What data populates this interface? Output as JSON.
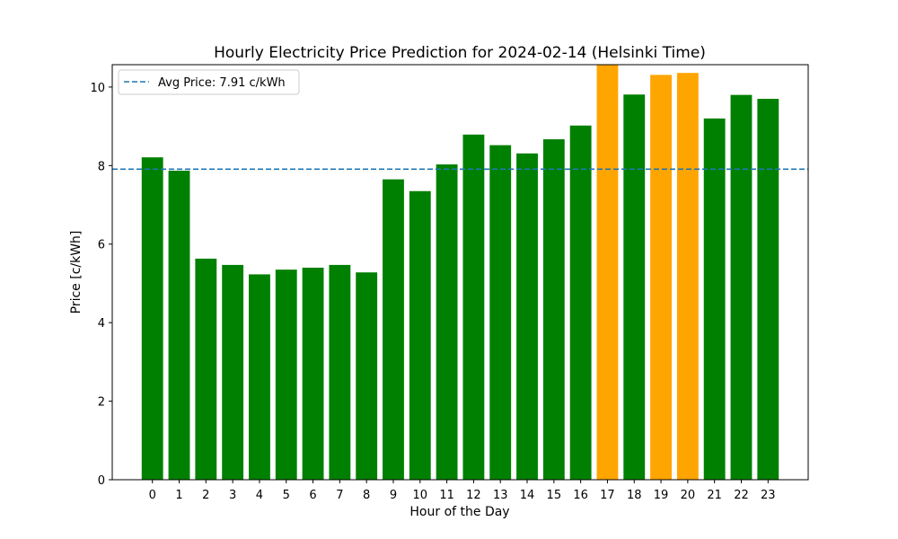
{
  "chart_data": {
    "type": "bar",
    "title": "Hourly Electricity Price Prediction for 2024-02-14 (Helsinki Time)",
    "xlabel": "Hour of the Day",
    "ylabel": "Price [c/kWh]",
    "categories": [
      "0",
      "1",
      "2",
      "3",
      "4",
      "5",
      "6",
      "7",
      "8",
      "9",
      "10",
      "11",
      "12",
      "13",
      "14",
      "15",
      "16",
      "17",
      "18",
      "19",
      "20",
      "21",
      "22",
      "23"
    ],
    "values": [
      8.21,
      7.87,
      5.63,
      5.47,
      5.23,
      5.35,
      5.4,
      5.47,
      5.28,
      7.65,
      7.35,
      8.03,
      8.79,
      8.52,
      8.31,
      8.67,
      9.02,
      10.57,
      9.81,
      10.31,
      10.36,
      9.2,
      9.8,
      9.7
    ],
    "bar_colors": [
      "green",
      "green",
      "green",
      "green",
      "green",
      "green",
      "green",
      "green",
      "green",
      "green",
      "green",
      "green",
      "green",
      "green",
      "green",
      "green",
      "green",
      "orange",
      "green",
      "orange",
      "orange",
      "green",
      "green",
      "green"
    ],
    "ylim": [
      0,
      10.57
    ],
    "yticks": [
      0,
      2,
      4,
      6,
      8,
      10
    ],
    "reference_line": {
      "label": "Avg Price: 7.91 c/kWh",
      "value": 7.91,
      "style": "dashed",
      "color": "#1f77b4"
    },
    "legend": {
      "position": "top-left",
      "entries": [
        "Avg Price: 7.91 c/kWh"
      ]
    },
    "grid": false
  },
  "colors": {
    "green": "#008000",
    "orange": "#ffa500",
    "avg_line": "#1f77b4"
  }
}
